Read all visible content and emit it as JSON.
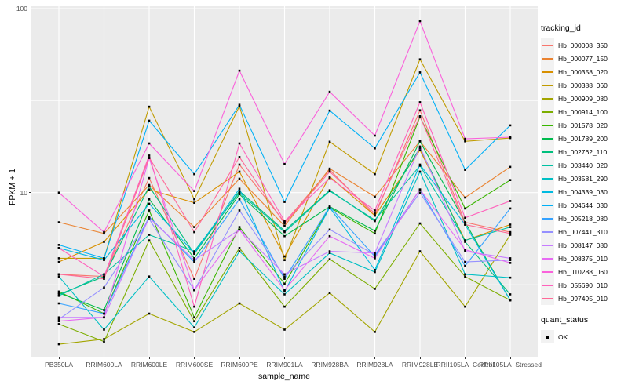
{
  "legend": {
    "tracking_title": "tracking_id",
    "quant_title": "quant_status",
    "quant_label": "OK"
  },
  "chart_data": {
    "type": "line",
    "title": "",
    "xlabel": "sample_name",
    "ylabel": "FPKM + 1",
    "y_scale": "log10",
    "ylim": [
      1.28,
      101
    ],
    "y_ticks": [
      100,
      10
    ],
    "y_minor_ticks": [
      31.623,
      3.1623
    ],
    "grid": true,
    "panel_bg": "#EBEBEB",
    "grid_color": "#FFFFFF",
    "legend_position": "right",
    "point_marker": {
      "shape": "square",
      "color": "#000000",
      "legend_label": "OK"
    },
    "categories": [
      "PB350LA",
      "RRIM600LA",
      "RRIM600LE",
      "RRIM600SE",
      "RRIM600PE",
      "RRIM901LA",
      "RRIM928BA",
      "RRIM928LA",
      "RRIM928LE",
      "RRII105LA_Control",
      "RRII105LA_Stressed"
    ],
    "series": [
      {
        "name": "Hb_000008_350",
        "color": "#F8766D",
        "values": [
          3.6,
          3.5,
          12.0,
          3.4,
          14.2,
          6.9,
          13.3,
          7.5,
          28.0,
          6.9,
          6.1
        ]
      },
      {
        "name": "Hb_000077_150",
        "color": "#EA8331",
        "values": [
          6.9,
          6.0,
          11.0,
          6.5,
          11.9,
          6.6,
          13.5,
          9.5,
          19.0,
          9.4,
          13.8
        ]
      },
      {
        "name": "Hb_000358_020",
        "color": "#D89000",
        "values": [
          4.2,
          5.4,
          10.4,
          8.8,
          13.0,
          4.5,
          12.2,
          7.5,
          17.0,
          5.5,
          6.7
        ]
      },
      {
        "name": "Hb_000388_060",
        "color": "#C09B00",
        "values": [
          4.4,
          4.4,
          29.3,
          9.2,
          29.5,
          4.3,
          18.9,
          12.6,
          53.0,
          19.0,
          19.8
        ]
      },
      {
        "name": "Hb_000909_080",
        "color": "#A3A500",
        "values": [
          1.5,
          1.6,
          2.2,
          1.75,
          2.5,
          1.8,
          2.85,
          1.75,
          4.8,
          2.4,
          5.9
        ]
      },
      {
        "name": "Hb_000914_100",
        "color": "#7CAE00",
        "values": [
          1.93,
          1.55,
          5.5,
          2.0,
          5.0,
          2.4,
          4.35,
          3.0,
          6.8,
          3.5,
          2.6
        ]
      },
      {
        "name": "Hb_001578_020",
        "color": "#39B600",
        "values": [
          2.9,
          2.2,
          8.0,
          2.1,
          6.5,
          3.2,
          8.3,
          6.0,
          25.8,
          8.2,
          11.7
        ]
      },
      {
        "name": "Hb_001789_200",
        "color": "#00BB4E",
        "values": [
          2.85,
          2.3,
          9.2,
          4.4,
          9.8,
          5.8,
          8.4,
          6.2,
          19.0,
          6.9,
          2.6
        ]
      },
      {
        "name": "Hb_002762_110",
        "color": "#00BF7D",
        "values": [
          2.8,
          3.5,
          10.8,
          4.65,
          10.2,
          6.2,
          10.3,
          7.0,
          17.5,
          5.4,
          2.8
        ]
      },
      {
        "name": "Hb_003440_020",
        "color": "#00C1A3",
        "values": [
          2.75,
          3.6,
          5.9,
          4.8,
          10.0,
          6.1,
          10.2,
          7.1,
          14.0,
          5.5,
          6.5
        ]
      },
      {
        "name": "Hb_003581_290",
        "color": "#00BFC4",
        "values": [
          3.5,
          1.8,
          3.5,
          1.85,
          4.8,
          2.8,
          4.7,
          3.7,
          13.0,
          3.6,
          3.45
        ]
      },
      {
        "name": "Hb_004339_030",
        "color": "#00BAE0",
        "values": [
          5.0,
          4.3,
          8.7,
          4.7,
          10.5,
          2.9,
          8.3,
          3.8,
          14.2,
          6.7,
          2.6
        ]
      },
      {
        "name": "Hb_004644_030",
        "color": "#00B0F6",
        "values": [
          5.2,
          4.4,
          24.6,
          12.6,
          30.0,
          8.9,
          27.9,
          17.4,
          45.0,
          13.3,
          23.2
        ]
      },
      {
        "name": "Hb_005218_080",
        "color": "#35A2FF",
        "values": [
          2.5,
          2.2,
          7.4,
          4.2,
          9.2,
          3.4,
          8.4,
          4.5,
          10.4,
          4.0,
          8.2
        ]
      },
      {
        "name": "Hb_007441_310",
        "color": "#9590FF",
        "values": [
          2.05,
          3.05,
          7.2,
          2.95,
          8.0,
          3.5,
          6.3,
          4.6,
          10.0,
          4.2,
          4.3
        ]
      },
      {
        "name": "Hb_008147_080",
        "color": "#C77CFF",
        "values": [
          2.1,
          2.1,
          7.3,
          4.3,
          6.3,
          3.6,
          4.8,
          4.7,
          17.8,
          4.8,
          4.4
        ]
      },
      {
        "name": "Hb_008375_010",
        "color": "#E76BF3",
        "values": [
          2.0,
          2.1,
          15.4,
          2.95,
          6.3,
          2.95,
          5.8,
          4.4,
          10.4,
          4.9,
          4.15
        ]
      },
      {
        "name": "Hb_010288_060",
        "color": "#FA62DB",
        "values": [
          10.0,
          6.1,
          18.5,
          10.2,
          46.0,
          14.3,
          35.3,
          20.4,
          85.5,
          19.6,
          20.0
        ]
      },
      {
        "name": "Hb_055690_010",
        "color": "#FF62BC",
        "values": [
          5.0,
          3.5,
          15.9,
          2.4,
          18.5,
          7.0,
          12.0,
          8.0,
          31.0,
          7.3,
          9.0
        ]
      },
      {
        "name": "Hb_097495_010",
        "color": "#FF6A98",
        "values": [
          3.6,
          3.4,
          15.5,
          6.1,
          15.6,
          6.8,
          13.0,
          7.7,
          26.0,
          6.7,
          6.0
        ]
      }
    ]
  }
}
